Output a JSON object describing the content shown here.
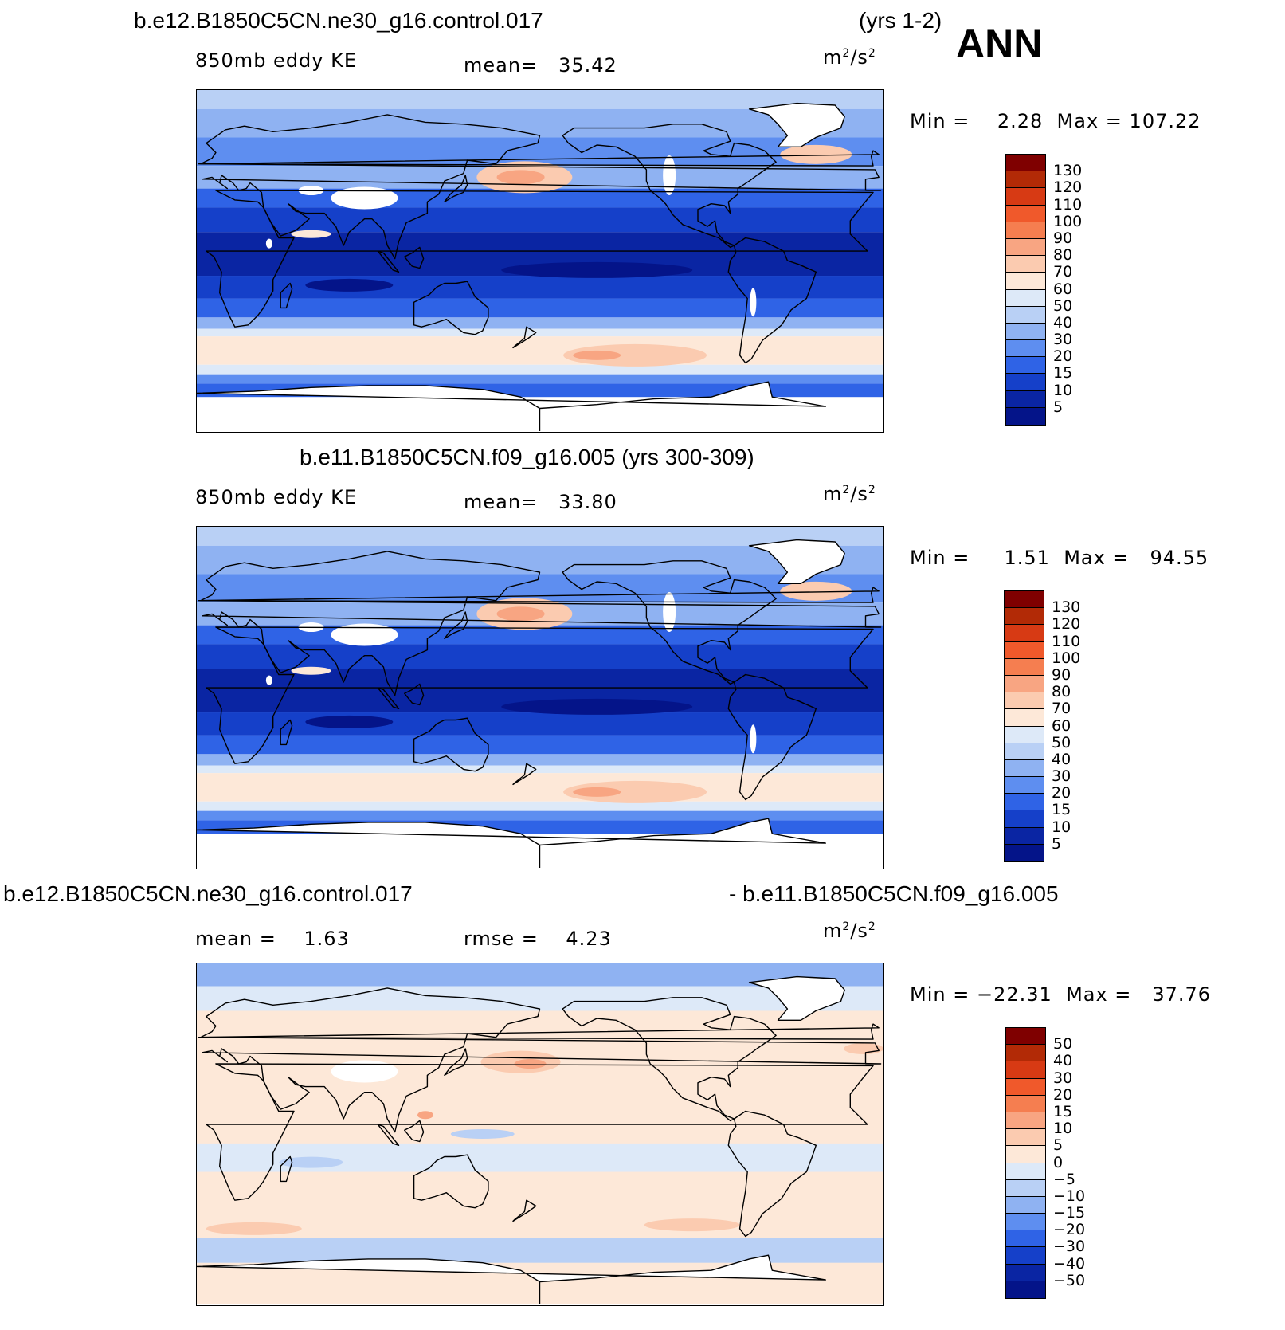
{
  "season": "ANN",
  "panels": [
    {
      "case": "b.e12.B1850C5CN.ne30_g16.control.017",
      "years": "(yrs 1-2)",
      "variable": "850mb eddy KE",
      "mean_label": "mean=",
      "mean_value": "35.42",
      "units_base": "m",
      "units_exp1": "2",
      "units_mid": "/s",
      "units_exp2": "2",
      "min_label": "Min  =",
      "min_value": "2.28",
      "max_label": "Max  =",
      "max_value": "107.22",
      "levels": [
        "130",
        "120",
        "110",
        "100",
        "90",
        "80",
        "70",
        "60",
        "50",
        "40",
        "30",
        "20",
        "15",
        "10",
        "5"
      ]
    },
    {
      "case": "b.e11.B1850C5CN.f09_g16.005 (yrs 300-309)",
      "variable": "850mb eddy KE",
      "mean_label": "mean=",
      "mean_value": "33.80",
      "units_base": "m",
      "units_exp1": "2",
      "units_mid": "/s",
      "units_exp2": "2",
      "min_label": "Min  =",
      "min_value": "1.51",
      "max_label": "Max  =",
      "max_value": "94.55",
      "levels": [
        "130",
        "120",
        "110",
        "100",
        "90",
        "80",
        "70",
        "60",
        "50",
        "40",
        "30",
        "20",
        "15",
        "10",
        "5"
      ]
    },
    {
      "case_left": "b.e12.B1850C5CN.ne30_g16.control.017",
      "case_right": "- b.e11.B1850C5CN.f09_g16.005",
      "mean_label": "mean  =",
      "mean_value": "1.63",
      "rmse_label": "rmse  =",
      "rmse_value": "4.23",
      "units_base": "m",
      "units_exp1": "2",
      "units_mid": "/s",
      "units_exp2": "2",
      "min_label": "Min  =",
      "min_value": "−22.31",
      "max_label": "Max  =",
      "max_value": "37.76",
      "levels": [
        "50",
        "40",
        "30",
        "20",
        "15",
        "10",
        "5",
        "0",
        "−5",
        "−10",
        "−15",
        "−20",
        "−30",
        "−40",
        "−50"
      ]
    }
  ],
  "colors": {
    "abs_scale": [
      "#7f0000",
      "#b22a06",
      "#d73a14",
      "#f0592b",
      "#f57e50",
      "#f8a582",
      "#fbcbb0",
      "#fde8d8",
      "#dde9f8",
      "#b9d0f5",
      "#8fb2f2",
      "#5e8ef0",
      "#2f63e6",
      "#1540c9",
      "#0a25a3",
      "#041489"
    ],
    "diff_scale": [
      "#7f0000",
      "#b22a06",
      "#d73a14",
      "#f0592b",
      "#f57e50",
      "#f8a582",
      "#fbcbb0",
      "#fde8d8",
      "#dde9f8",
      "#b9d0f5",
      "#8fb2f2",
      "#5e8ef0",
      "#2f63e6",
      "#1540c9",
      "#0a25a3",
      "#041489"
    ]
  },
  "chart_data": [
    {
      "type": "heatmap",
      "title": "b.e12.B1850C5CN.ne30_g16.control.017 (yrs 1-2) ANN",
      "variable": "850mb eddy KE",
      "units": "m2/s2",
      "mean": 35.42,
      "min": 2.28,
      "max": 107.22,
      "contour_levels": [
        5,
        10,
        15,
        20,
        30,
        40,
        50,
        60,
        70,
        80,
        90,
        100,
        110,
        120,
        130
      ]
    },
    {
      "type": "heatmap",
      "title": "b.e11.B1850C5CN.f09_g16.005 (yrs 300-309)",
      "variable": "850mb eddy KE",
      "units": "m2/s2",
      "mean": 33.8,
      "min": 1.51,
      "max": 94.55,
      "contour_levels": [
        5,
        10,
        15,
        20,
        30,
        40,
        50,
        60,
        70,
        80,
        90,
        100,
        110,
        120,
        130
      ]
    },
    {
      "type": "heatmap",
      "title": "b.e12.B1850C5CN.ne30_g16.control.017 - b.e11.B1850C5CN.f09_g16.005",
      "units": "m2/s2",
      "mean": 1.63,
      "rmse": 4.23,
      "min": -22.31,
      "max": 37.76,
      "contour_levels": [
        -50,
        -40,
        -30,
        -20,
        -15,
        -10,
        -5,
        0,
        5,
        10,
        15,
        20,
        30,
        40,
        50
      ]
    }
  ]
}
